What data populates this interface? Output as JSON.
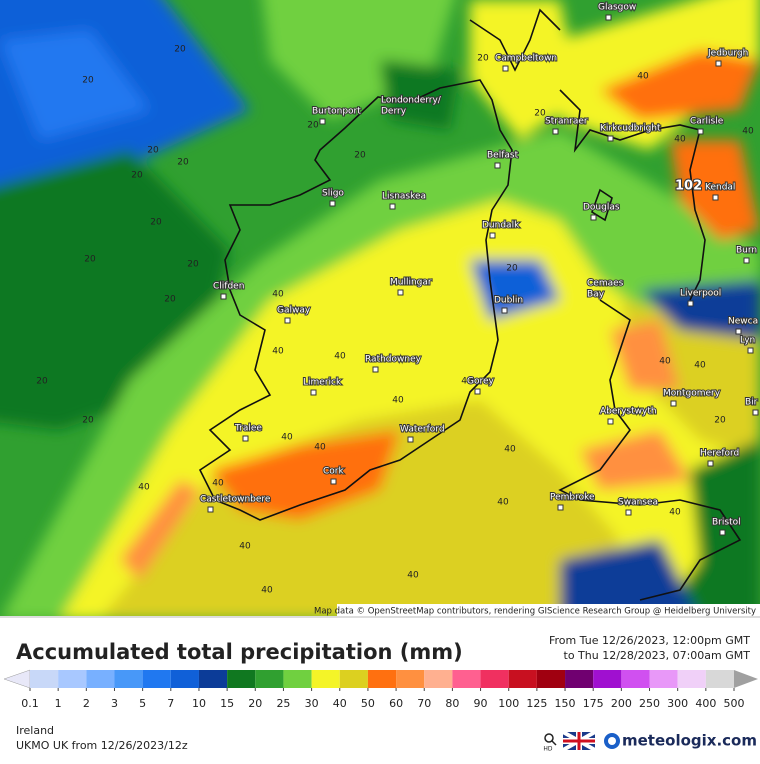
{
  "map": {
    "place_labels": [
      "Glasgow",
      "Campbeltown",
      "Jedburgh",
      [
        "Londonderry/",
        "Derry"
      ],
      "Burtonport",
      "Stranraer",
      "Kirkcudbright",
      "Carlisle",
      "Belfast",
      "Kendal",
      "Sligo",
      "Lisnaskea",
      "Douglas",
      "Dundalk",
      "Burn",
      "Clifden",
      "Mullingar",
      [
        "Cemaes",
        "Bay"
      ],
      "Liverpool",
      "Dublin",
      "Galway",
      "Newca",
      "Lyn",
      "Rathdowney",
      "Limerick",
      "Gorey",
      "Montgomery",
      "Bir",
      "Aberystwyth",
      "Tralee",
      "Waterford",
      "Hereford",
      "Cork",
      "Castletownbere",
      "Pembroke",
      "Swansea",
      "Bristol"
    ],
    "max_label": 102,
    "contour_labels": [
      20,
      20,
      20,
      20,
      20,
      20,
      20,
      20,
      20,
      20,
      20,
      20,
      20,
      20,
      20,
      20,
      20,
      40,
      40,
      40,
      40,
      40,
      40,
      40,
      40,
      40,
      40,
      40,
      40,
      40,
      40,
      40,
      40,
      40,
      40,
      40,
      40
    ],
    "attribution": "Map data © OpenStreetMap contributors, rendering GIScience Research Group @ Heidelberg University"
  },
  "legend": {
    "title": "Accumulated total precipitation (mm)",
    "period": [
      "From Tue 12/26/2023, 12:00pm GMT",
      "to Thu 12/28/2023, 07:00am GMT"
    ],
    "scale_ticks": [
      0.1,
      1,
      2,
      3,
      5,
      7,
      10,
      15,
      20,
      25,
      30,
      40,
      50,
      60,
      70,
      80,
      90,
      100,
      125,
      150,
      175,
      200,
      250,
      300,
      400,
      500
    ],
    "scale_colors": [
      "#c8d8f8",
      "#a8c8ff",
      "#78b0ff",
      "#4898f8",
      "#2078f0",
      "#1060d8",
      "#0c3c98",
      "#107820",
      "#30a030",
      "#70d040",
      "#f4f428",
      "#dcd020",
      "#ff7010",
      "#ff9040",
      "#ffb090",
      "#ff6090",
      "#f03060",
      "#c81020",
      "#a00010",
      "#700070",
      "#a010d0",
      "#d050f0",
      "#e898f8",
      "#f0d0f8",
      "#d8d8d8"
    ],
    "below_color": "#e8e8f8",
    "above_color": "#a0a0a0"
  },
  "footer": {
    "region": "Ireland",
    "model": "UKMO UK from  12/26/2023/12z",
    "hd": "HD",
    "brand": "meteologix.com"
  }
}
